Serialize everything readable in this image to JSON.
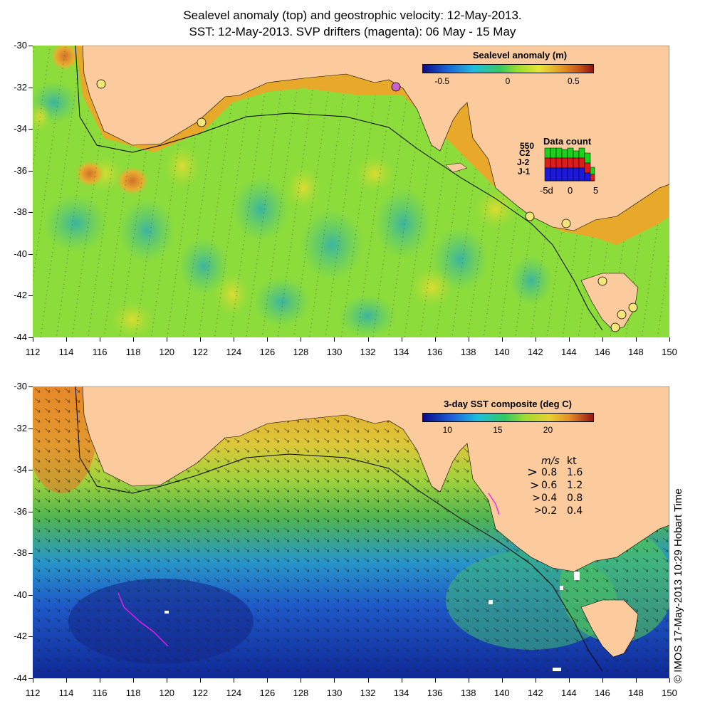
{
  "title_line1": "Sealevel anomaly (top) and geostrophic velocity: 12-May-2013.",
  "title_line2": "SST: 12-May-2013. SVP drifters (magenta): 06 May - 15 May",
  "x_ticks": [
    "112",
    "114",
    "116",
    "118",
    "120",
    "122",
    "124",
    "126",
    "128",
    "130",
    "132",
    "134",
    "136",
    "138",
    "140",
    "142",
    "144",
    "146",
    "148",
    "150"
  ],
  "y_ticks": [
    "-30",
    "-32",
    "-34",
    "-36",
    "-38",
    "-40",
    "-42",
    "-44"
  ],
  "top_panel": {
    "legend_title": "Sealevel anomaly (m)",
    "colorbar_ticks": [
      "-0.5",
      "0",
      "0.5"
    ],
    "colorbar_range": [
      -0.65,
      0.65
    ],
    "colorbar_tick_values": [
      -0.5,
      0,
      0.5
    ],
    "data_count": {
      "title": "Data count",
      "max_label": "550",
      "series": [
        {
          "name": "C2",
          "color": "#19d219"
        },
        {
          "name": "J-2",
          "color": "#e11919"
        },
        {
          "name": "J-1",
          "color": "#1919e1"
        }
      ],
      "axis_labels": [
        "-5d",
        "0",
        "5"
      ]
    }
  },
  "bottom_panel": {
    "legend_title": "3-day SST composite (deg C)",
    "colorbar_ticks": [
      "10",
      "15",
      "20"
    ],
    "colorbar_range": [
      7.5,
      24.5
    ],
    "colorbar_tick_values": [
      10,
      15,
      20
    ],
    "velocity_legend": {
      "header": [
        "m/s",
        "kt"
      ],
      "rows": [
        [
          "0.8",
          "1.6"
        ],
        [
          "0.6",
          "1.2"
        ],
        [
          "0.4",
          "0.8"
        ],
        [
          "0.2",
          "0.4"
        ]
      ]
    }
  },
  "credit": "© IMOS 17-May-2013 10:29 Hobart Time",
  "colors": {
    "land": "#fccb9d",
    "ssh_mid": "#8cdc3c",
    "ssh_high": "#d2781e",
    "sst_warm": "#e69a28",
    "sst_cold": "#1432a0"
  }
}
